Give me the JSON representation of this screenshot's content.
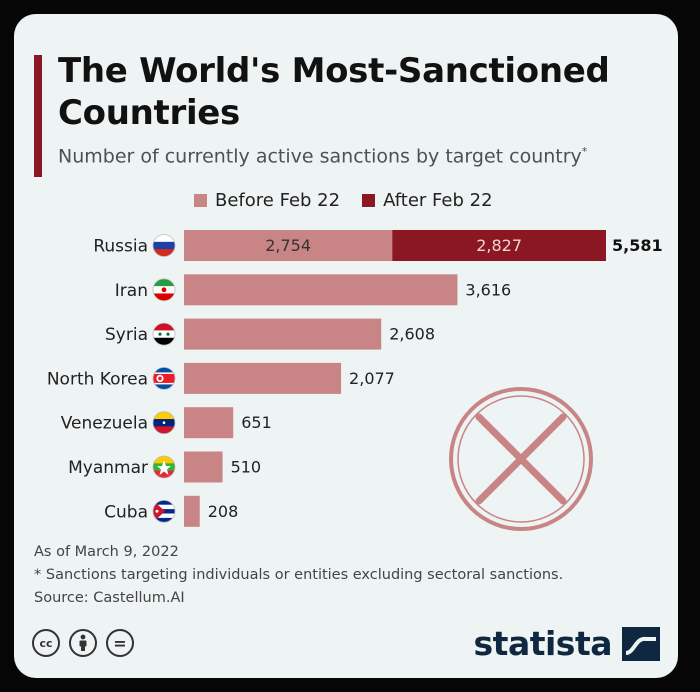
{
  "header": {
    "title": "The World's Most-Sanctioned\nCountries",
    "subtitle": "Number of currently active sanctions by target country",
    "subtitle_mark": "*"
  },
  "chart_data": {
    "type": "bar",
    "orientation": "horizontal",
    "stacked": true,
    "title": "The World's Most-Sanctioned Countries",
    "subtitle": "Number of currently active sanctions by target country*",
    "xlabel": "",
    "ylabel": "",
    "categories": [
      "Russia",
      "Iran",
      "Syria",
      "North Korea",
      "Venezuela",
      "Myanmar",
      "Cuba"
    ],
    "series": [
      {
        "name": "Before Feb 22",
        "color": "#c98585",
        "values": [
          2754,
          3616,
          2608,
          2077,
          651,
          510,
          208
        ],
        "labels": [
          "2,754",
          "3,616",
          "2,608",
          "2,077",
          "651",
          "510",
          "208"
        ]
      },
      {
        "name": "After Feb 22",
        "color": "#8a1721",
        "values": [
          2827,
          0,
          0,
          0,
          0,
          0,
          0
        ],
        "labels": [
          "2,827",
          "",
          "",
          "",
          "",
          "",
          ""
        ]
      }
    ],
    "totals": [
      5581,
      3616,
      2608,
      2077,
      651,
      510,
      208
    ],
    "total_labels": [
      "5,581",
      "3,616",
      "2,608",
      "2,077",
      "651",
      "510",
      "208"
    ],
    "xlim": [
      0,
      5581
    ],
    "grid": false,
    "legend_position": "top"
  },
  "flags": [
    {
      "country": "Russia",
      "icon": "russia-flag-icon"
    },
    {
      "country": "Iran",
      "icon": "iran-flag-icon"
    },
    {
      "country": "Syria",
      "icon": "syria-flag-icon"
    },
    {
      "country": "North Korea",
      "icon": "north-korea-flag-icon"
    },
    {
      "country": "Venezuela",
      "icon": "venezuela-flag-icon"
    },
    {
      "country": "Myanmar",
      "icon": "myanmar-flag-icon"
    },
    {
      "country": "Cuba",
      "icon": "cuba-flag-icon"
    }
  ],
  "footer": {
    "date_note": "As of March 9, 2022",
    "footnote": "* Sanctions targeting individuals or entities excluding sectoral sanctions.",
    "source": "Source: Castellum.AI"
  },
  "license_icons": [
    "cc-icon",
    "by-icon",
    "nd-icon"
  ],
  "license_labels": [
    "cc",
    "="
  ],
  "brand": {
    "name": "statista",
    "icon": "statista-logo-icon"
  },
  "decoration": {
    "icon": "x-circle-icon"
  },
  "colors": {
    "before": "#c98585",
    "after": "#8a1721",
    "accent": "#8a1721",
    "brand": "#0f2740",
    "background": "#eef3f3"
  }
}
